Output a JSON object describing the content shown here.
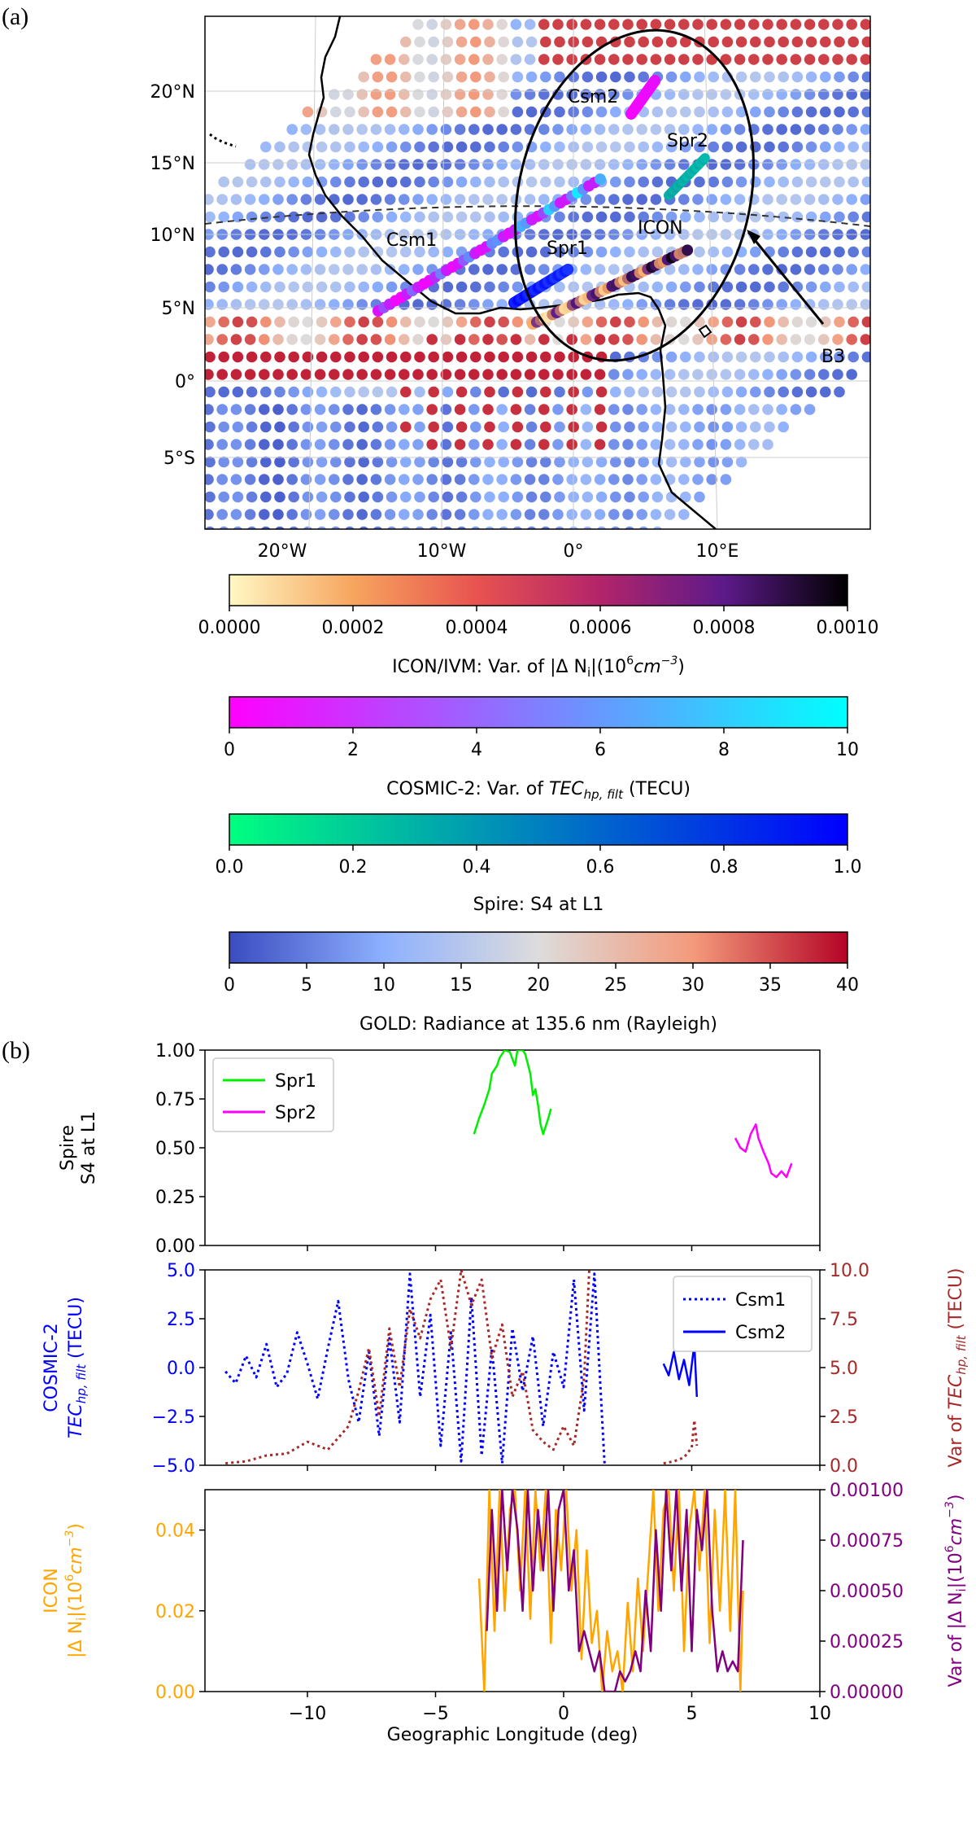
{
  "panel_a_label": "(a)",
  "panel_b_label": "(b)",
  "map": {
    "lat_ticks": [
      "20°N",
      "15°N",
      "10°N",
      "5°N",
      "0°",
      "5°S"
    ],
    "lon_ticks": [
      "20°W",
      "10°W",
      "0°",
      "10°E"
    ],
    "track_labels": [
      "Csm2",
      "Spr2",
      "Csm1",
      "Spr1",
      "ICON"
    ],
    "annotation": "B3"
  },
  "colorbars": [
    {
      "label": "ICON/IVM: Var. of |Δ N",
      "label_sub": "i",
      "label_tail": "|(10",
      "label_sup": "6",
      "label_unit": "cm",
      "label_unit_sup": "−3",
      "label_close": ")",
      "ticks": [
        "0.0000",
        "0.0002",
        "0.0004",
        "0.0006",
        "0.0008",
        "0.0010"
      ],
      "colors": [
        "#fff8c4",
        "#f7a55f",
        "#e8534f",
        "#b3246a",
        "#5c1a8a",
        "#000000"
      ]
    },
    {
      "label": "COSMIC-2: Var. of ",
      "label_it": "TEC",
      "label_sub": "hp, filt",
      "label_close": " (TECU)",
      "ticks": [
        "0",
        "2",
        "4",
        "6",
        "8",
        "10"
      ],
      "colors": [
        "#ff00ff",
        "#00ffff"
      ]
    },
    {
      "label": "Spire: S4 at L1",
      "ticks": [
        "0.0",
        "0.2",
        "0.4",
        "0.6",
        "0.8",
        "1.0"
      ],
      "colors": [
        "#00ff80",
        "#0000ff"
      ]
    },
    {
      "label": "GOLD: Radiance at 135.6 nm (Rayleigh)",
      "ticks": [
        "0",
        "5",
        "10",
        "15",
        "20",
        "25",
        "30",
        "35",
        "40"
      ],
      "colors": [
        "#3b4cc0",
        "#8db0fe",
        "#dddcdc",
        "#f49a7b",
        "#b40426"
      ]
    }
  ],
  "chart_data": [
    {
      "type": "line",
      "title": "",
      "ylabel": "Spire S4 at L1",
      "ylabel_lines": [
        "Spire",
        "S4 at L1"
      ],
      "ylim": [
        0,
        1
      ],
      "xlim": [
        -14,
        10
      ],
      "yticks": [
        "0.00",
        "0.25",
        "0.50",
        "0.75",
        "1.00"
      ],
      "legend": [
        "Spr1",
        "Spr2"
      ],
      "series": [
        {
          "name": "Spr1",
          "color": "#00ee00",
          "x": [
            -3.5,
            -3.3,
            -3.1,
            -2.9,
            -2.8,
            -2.6,
            -2.5,
            -2.3,
            -2.1,
            -1.9,
            -1.8,
            -1.6,
            -1.5,
            -1.3,
            -1.2,
            -1.1,
            -1.0,
            -0.9,
            -0.8,
            -0.6,
            -0.5
          ],
          "y": [
            0.57,
            0.65,
            0.72,
            0.8,
            0.88,
            0.92,
            0.96,
            1.0,
            0.99,
            0.92,
            1.0,
            1.0,
            0.98,
            0.88,
            0.77,
            0.8,
            0.72,
            0.62,
            0.57,
            0.65,
            0.7
          ]
        },
        {
          "name": "Spr2",
          "color": "#ff00ff",
          "x": [
            6.7,
            6.9,
            7.1,
            7.3,
            7.5,
            7.6,
            7.8,
            8.0,
            8.1,
            8.3,
            8.5,
            8.7,
            8.9
          ],
          "y": [
            0.55,
            0.5,
            0.48,
            0.57,
            0.62,
            0.55,
            0.48,
            0.42,
            0.37,
            0.35,
            0.38,
            0.35,
            0.42
          ]
        }
      ]
    },
    {
      "type": "line",
      "ylabel": "COSMIC-2 TEC_hp,filt (TECU)",
      "ylabel_lines": [
        "COSMIC-2",
        "TEC"
      ],
      "ylabel_sub": "hp, filt",
      "ylabel_tail": " (TECU)",
      "y2label": "Var of TEC_hp,filt (TECU)",
      "y2label_head": "Var of ",
      "y2label_it": "TEC",
      "y2label_sub": "hp, filt",
      "y2label_tail": " (TECU)",
      "ylim": [
        -5,
        5
      ],
      "y2lim": [
        0,
        10
      ],
      "xlim": [
        -14,
        10
      ],
      "yticks": [
        "−5.0",
        "−2.5",
        "0.0",
        "2.5",
        "5.0"
      ],
      "y2ticks": [
        "0.0",
        "2.5",
        "5.0",
        "7.5",
        "10.0"
      ],
      "legend": [
        "Csm1",
        "Csm2"
      ],
      "series": [
        {
          "name": "Csm1",
          "color": "#0000ff",
          "style": "dotted",
          "x": [
            -13.2,
            -12.8,
            -12.4,
            -12.0,
            -11.6,
            -11.2,
            -10.8,
            -10.4,
            -10.0,
            -9.6,
            -9.2,
            -8.8,
            -8.4,
            -8.0,
            -7.6,
            -7.2,
            -6.8,
            -6.4,
            -6.0,
            -5.6,
            -5.2,
            -4.8,
            -4.4,
            -4.0,
            -3.6,
            -3.2,
            -2.8,
            -2.4,
            -2.0,
            -1.6,
            -1.2,
            -0.8,
            -0.4,
            0.0,
            0.4,
            0.8,
            1.2,
            1.6
          ],
          "y": [
            -0.2,
            -0.8,
            0.6,
            -0.5,
            1.2,
            -1.0,
            -0.3,
            1.8,
            0.2,
            -1.6,
            1.0,
            3.4,
            -0.6,
            -2.8,
            0.8,
            -3.5,
            1.5,
            -2.8,
            4.8,
            -1.5,
            2.7,
            -4.0,
            1.8,
            -4.8,
            3.6,
            -4.5,
            1.0,
            -4.9,
            2.0,
            -1.2,
            1.6,
            -3.0,
            0.8,
            -1.0,
            4.5,
            -2.2,
            4.8,
            -5.0
          ]
        },
        {
          "name": "Csm2",
          "color": "#0000ff",
          "style": "solid",
          "x": [
            3.9,
            4.1,
            4.3,
            4.5,
            4.7,
            4.9,
            5.1,
            5.2
          ],
          "y": [
            0.2,
            -0.4,
            0.8,
            -0.6,
            0.4,
            -0.9,
            1.2,
            -1.5
          ]
        },
        {
          "name": "Var Csm1",
          "color": "#a52a2a",
          "style": "dotted",
          "axis": "right",
          "x": [
            -13.2,
            -12.4,
            -11.6,
            -10.8,
            -10.0,
            -9.2,
            -8.4,
            -8.0,
            -7.6,
            -7.2,
            -6.8,
            -6.4,
            -6.0,
            -5.6,
            -5.2,
            -4.8,
            -4.4,
            -4.0,
            -3.6,
            -3.2,
            -2.8,
            -2.4,
            -2.0,
            -1.6,
            -1.2,
            -0.8,
            -0.4,
            0.0,
            0.4,
            0.8,
            1.0
          ],
          "y": [
            0.1,
            0.2,
            0.5,
            0.6,
            1.2,
            0.8,
            2.0,
            3.8,
            6.0,
            2.5,
            7.0,
            4.0,
            8.0,
            6.5,
            8.5,
            9.5,
            6.0,
            10.0,
            8.2,
            9.5,
            5.5,
            7.2,
            3.5,
            4.8,
            1.8,
            1.2,
            0.8,
            2.0,
            1.0,
            4.5,
            10.0
          ]
        },
        {
          "name": "Var Csm2",
          "color": "#a52a2a",
          "style": "dotted",
          "axis": "right",
          "x": [
            3.9,
            4.3,
            4.7,
            5.0,
            5.1,
            5.2
          ],
          "y": [
            0.1,
            0.2,
            0.4,
            0.9,
            2.3,
            1.0
          ]
        }
      ]
    },
    {
      "type": "line",
      "ylabel": "ICON |Δ N_i|(10^6 cm^-3)",
      "ylabel_lines": [
        "ICON",
        "|Δ N"
      ],
      "ylabel_sub": "i",
      "ylabel_tail": "|(10",
      "ylabel_sup": "6",
      "ylabel_unit": "cm",
      "ylabel_unit_sup": "−3",
      "ylabel_close": ")",
      "y2label": "Var of |Δ N_i|(10^6 cm^-3)",
      "y2label_head": "Var of |Δ N",
      "y2label_sub": "i",
      "y2label_tail": "|(10",
      "y2label_sup": "6",
      "y2label_unit": "cm",
      "y2label_unit_sup": "−3",
      "y2label_close": ")",
      "xlabel": "Geographic Longitude (deg)",
      "ylim": [
        0,
        0.05
      ],
      "y2lim": [
        0,
        0.001
      ],
      "xlim": [
        -14,
        10
      ],
      "xticks": [
        "−10",
        "−5",
        "0",
        "5",
        "10"
      ],
      "yticks": [
        "0.00",
        "0.02",
        "0.04"
      ],
      "y2ticks": [
        "0.00000",
        "0.00025",
        "0.00050",
        "0.00075",
        "0.00100"
      ],
      "series": [
        {
          "name": "ICON |ΔNi|",
          "color": "#ffa500",
          "x": [
            -3.3,
            -3.1,
            -2.9,
            -2.7,
            -2.5,
            -2.3,
            -2.1,
            -1.9,
            -1.7,
            -1.5,
            -1.3,
            -1.1,
            -0.9,
            -0.7,
            -0.5,
            -0.3,
            -0.1,
            0.1,
            0.3,
            0.5,
            0.7,
            0.9,
            1.1,
            1.3,
            1.5,
            1.7,
            1.9,
            2.1,
            2.3,
            2.5,
            2.7,
            2.9,
            3.1,
            3.3,
            3.5,
            3.7,
            3.9,
            4.1,
            4.3,
            4.5,
            4.7,
            4.9,
            5.1,
            5.3,
            5.5,
            5.7,
            5.9,
            6.1,
            6.3,
            6.5,
            6.7,
            6.9,
            7.0
          ],
          "y": [
            0.028,
            0.0,
            0.05,
            0.015,
            0.05,
            0.02,
            0.045,
            0.05,
            0.025,
            0.05,
            0.018,
            0.05,
            0.03,
            0.05,
            0.012,
            0.045,
            0.03,
            0.05,
            0.025,
            0.04,
            0.008,
            0.035,
            0.012,
            0.02,
            0.0,
            0.015,
            0.005,
            0.01,
            0.0,
            0.022,
            0.005,
            0.028,
            0.01,
            0.03,
            0.05,
            0.02,
            0.045,
            0.05,
            0.025,
            0.05,
            0.01,
            0.04,
            0.05,
            0.03,
            0.05,
            0.012,
            0.045,
            0.02,
            0.05,
            0.015,
            0.05,
            0.0,
            0.025
          ]
        },
        {
          "name": "Var |ΔNi|",
          "color": "#800080",
          "axis": "right",
          "x": [
            -3.0,
            -2.8,
            -2.6,
            -2.4,
            -2.2,
            -2.0,
            -1.8,
            -1.6,
            -1.4,
            -1.2,
            -1.0,
            -0.8,
            -0.6,
            -0.4,
            -0.2,
            0.0,
            0.2,
            0.4,
            0.6,
            0.8,
            1.0,
            1.2,
            1.4,
            1.6,
            1.8,
            2.0,
            2.2,
            2.4,
            2.6,
            2.8,
            3.0,
            3.2,
            3.4,
            3.6,
            3.8,
            4.0,
            4.2,
            4.4,
            4.6,
            4.8,
            5.0,
            5.2,
            5.4,
            5.6,
            5.8,
            6.0,
            6.2,
            6.4,
            6.6,
            6.8,
            7.0
          ],
          "y": [
            0.0003,
            0.0009,
            0.0004,
            0.001,
            0.0006,
            0.001,
            0.0008,
            0.0004,
            0.001,
            0.0005,
            0.0009,
            0.0006,
            0.001,
            0.0004,
            0.0009,
            0.001,
            0.0005,
            0.0007,
            0.0002,
            0.0003,
            0.0002,
            0.0001,
            0.0002,
            0.0,
            0.0,
            0.0,
            0.0001,
            5e-05,
            0.0001,
            0.0002,
            0.0001,
            0.0005,
            0.0002,
            0.0008,
            0.0004,
            0.001,
            0.0006,
            0.001,
            0.0005,
            0.0009,
            0.0002,
            0.0009,
            0.0007,
            0.001,
            0.0004,
            0.0001,
            0.0002,
            0.0001,
            0.00015,
            0.0001,
            0.00075
          ]
        }
      ]
    }
  ]
}
